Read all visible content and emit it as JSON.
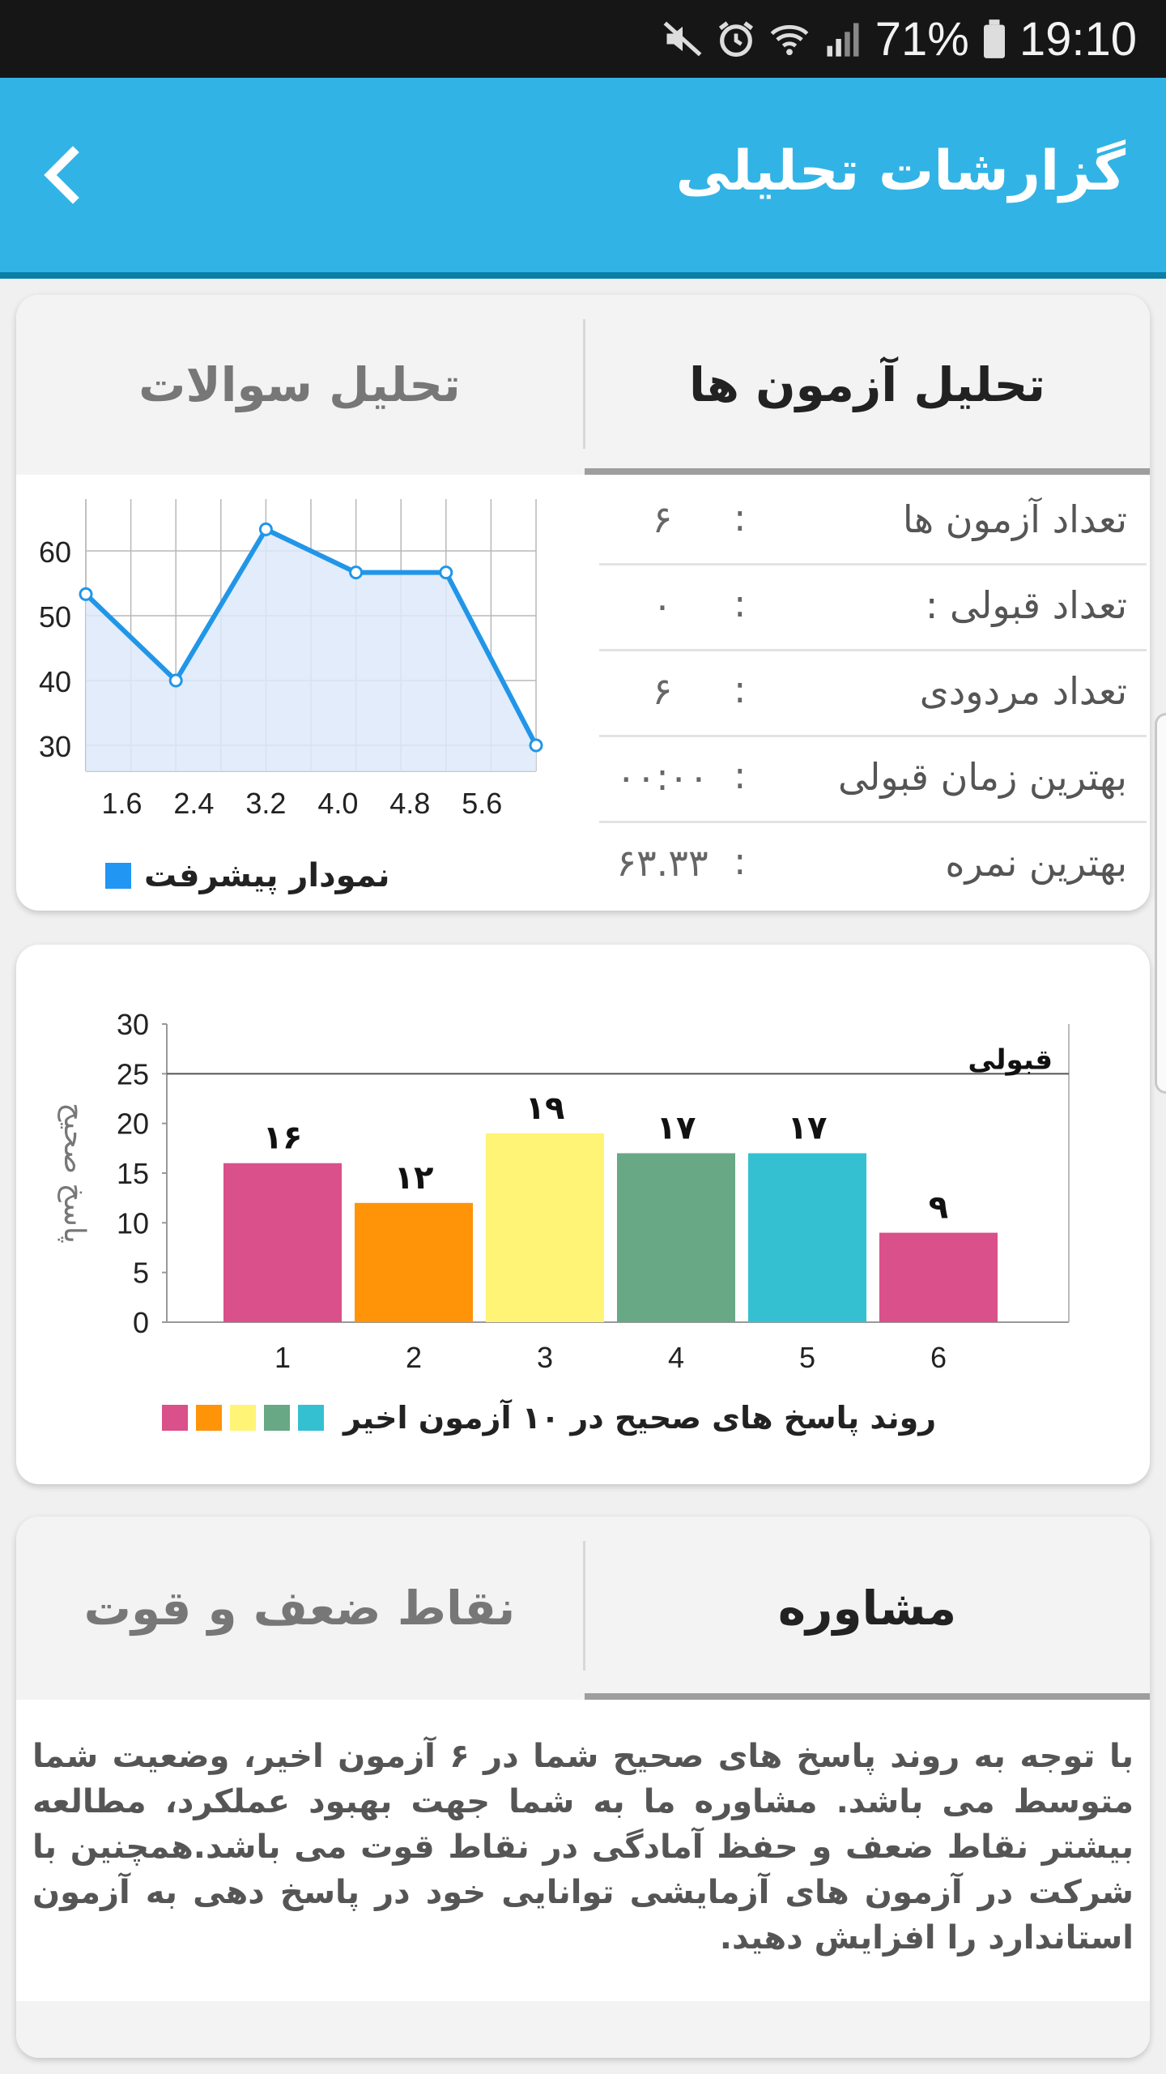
{
  "status_bar": {
    "battery": "71%",
    "time": "19:10",
    "icons": [
      "mute-icon",
      "alarm-icon",
      "wifi-icon",
      "signal-icon",
      "battery-icon"
    ]
  },
  "app_bar": {
    "title": "گزارشات تحلیلی",
    "back_icon": "chevron-left-icon",
    "color": "#32b3e5"
  },
  "analysis_card": {
    "tabs": [
      {
        "label": "تحلیل آزمون ها",
        "active": true
      },
      {
        "label": "تحلیل سوالات",
        "active": false
      }
    ],
    "stats": [
      {
        "label": "تعداد آزمون ها",
        "colon": ":",
        "value": "۶"
      },
      {
        "label": "تعداد قبولی :",
        "colon": ":",
        "value": "۰"
      },
      {
        "label": "تعداد مردودی",
        "colon": ":",
        "value": "۶"
      },
      {
        "label": "بهترین زمان قبولی",
        "colon": ":",
        "value": "۰۰:۰۰"
      },
      {
        "label": "بهترین نمره",
        "colon": ":",
        "value": "۶۳.۳۳"
      }
    ],
    "legend": "نمودار پیشرفت"
  },
  "bar_card": {
    "y_axis_label": "پاسخ صحیح",
    "threshold_label": "قبولی",
    "legend": "روند پاسخ های صحیح در ۱۰ آزمون اخیر",
    "legend_colors": [
      "#d9508a",
      "#ff9408",
      "#fff475",
      "#68a885",
      "#35c0d2"
    ]
  },
  "advice_card": {
    "tabs": [
      {
        "label": "مشاوره",
        "active": true
      },
      {
        "label": "نقاط ضعف و قوت",
        "active": false
      }
    ],
    "text": "با توجه به روند پاسخ های صحیح شما در ۶ آزمون اخیر، وضعیت شما متوسط می باشد. مشاوره ما به شما جهت بهبود عملکرد، مطالعه بیشتر نقاط ضعف و حفظ آمادگی در نقاط قوت می باشد.همچنین با شرکت در آزمون های آزمایشی توانایی خود در پاسخ دهی به آزمون استاندارد را افزایش دهید."
  },
  "chart_data": [
    {
      "type": "area",
      "x": [
        1.2,
        2.2,
        3.2,
        4.2,
        5.2,
        6.2
      ],
      "values": [
        53.33,
        40,
        63.33,
        56.67,
        56.67,
        30
      ],
      "x_ticks": [
        "1.6",
        "2.4",
        "3.2",
        "4.0",
        "4.8",
        "5.6"
      ],
      "y_ticks": [
        "30",
        "40",
        "50",
        "60"
      ],
      "ylim": [
        26,
        68
      ],
      "xlim": [
        1.2,
        6.2
      ],
      "grid": true,
      "line_color": "#2196e8",
      "fill_color": "#dde9f9",
      "legend": "نمودار پیشرفت"
    },
    {
      "type": "bar",
      "categories": [
        "1",
        "2",
        "3",
        "4",
        "5",
        "6"
      ],
      "values": [
        16,
        12,
        19,
        17,
        17,
        9
      ],
      "data_labels": [
        "۱۶",
        "۱۲",
        "۱۹",
        "۱۷",
        "۱۷",
        "۹"
      ],
      "colors": [
        "#d9508a",
        "#ff9408",
        "#fff475",
        "#68a885",
        "#35c0d2",
        "#d9508a"
      ],
      "y_ticks": [
        "0",
        "5",
        "10",
        "15",
        "20",
        "25",
        "30"
      ],
      "ylim": [
        0,
        30
      ],
      "threshold": 25,
      "threshold_label": "قبولی",
      "ylabel": "پاسخ صحیح",
      "legend": "روند پاسخ های صحیح در ۱۰ آزمون اخیر"
    }
  ]
}
